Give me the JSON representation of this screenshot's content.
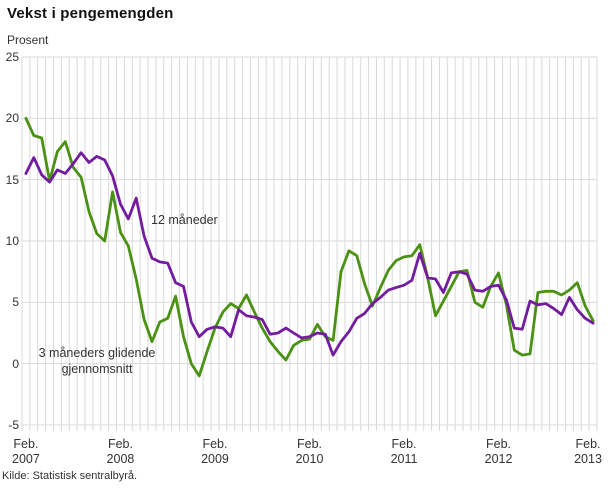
{
  "header": {
    "title": "Vekst i pengemengden",
    "y_axis_title": "Prosent"
  },
  "annotations": {
    "series_12m_label": "12 måneder",
    "series_3m_label_line1": "3 måneders glidende",
    "series_3m_label_line2": "gjennomsnitt"
  },
  "footer": {
    "source": "Kilde: Statistisk sentralbyrå."
  },
  "colors": {
    "purple_series": "#731c9e",
    "green_series": "#4a9114",
    "grid": "#d9d9d9",
    "text": "#333333",
    "title_text": "#111111"
  },
  "chart_data": {
    "type": "line",
    "title": "Vekst i pengemengden",
    "ylabel": "Prosent",
    "xlabel": "",
    "ylim": [
      -5,
      25
    ],
    "yticks": [
      25,
      20,
      15,
      10,
      5,
      0,
      -5
    ],
    "grid": true,
    "minor_x_grid": "monthly",
    "legend_position": "inline-annotations",
    "x_start": "Feb 2007",
    "x_end": "Feb 2013",
    "months_total": 73,
    "x_ticks": [
      {
        "month": "Feb.",
        "year": "2007"
      },
      {
        "month": "Feb.",
        "year": "2008"
      },
      {
        "month": "Feb.",
        "year": "2009"
      },
      {
        "month": "Feb.",
        "year": "2010"
      },
      {
        "month": "Feb.",
        "year": "2011"
      },
      {
        "month": "Feb.",
        "year": "2012"
      },
      {
        "month": "Feb.",
        "year": "2013"
      }
    ],
    "series": [
      {
        "name": "12 måneder",
        "color": "#731c9e",
        "values": [
          15.5,
          16.8,
          15.4,
          14.8,
          15.8,
          15.5,
          16.3,
          17.2,
          16.4,
          16.9,
          16.6,
          15.3,
          13.0,
          11.8,
          13.5,
          10.4,
          8.6,
          8.3,
          8.2,
          6.6,
          6.3,
          3.4,
          2.2,
          2.8,
          3.0,
          2.9,
          2.2,
          4.4,
          3.9,
          3.8,
          3.6,
          2.4,
          2.5,
          2.9,
          2.5,
          2.1,
          2.2,
          2.5,
          2.4,
          0.7,
          1.8,
          2.6,
          3.7,
          4.1,
          4.9,
          5.4,
          6.0,
          6.2,
          6.4,
          6.8,
          9.0,
          7.0,
          6.9,
          5.8,
          7.4,
          7.5,
          7.3,
          6.0,
          5.9,
          6.3,
          6.4,
          5.2,
          2.9,
          2.8,
          5.1,
          4.8,
          4.9,
          4.5,
          4.0,
          5.4,
          4.4,
          3.7,
          3.3
        ]
      },
      {
        "name": "3 måneders glidende gjennomsnitt",
        "color": "#4a9114",
        "values": [
          20.0,
          18.6,
          18.4,
          14.9,
          17.3,
          18.1,
          16.0,
          15.2,
          12.4,
          10.6,
          10.0,
          14.0,
          10.7,
          9.6,
          6.9,
          3.6,
          1.8,
          3.4,
          3.7,
          5.5,
          2.2,
          0.0,
          -1.0,
          1.0,
          2.9,
          4.2,
          4.9,
          4.5,
          5.6,
          4.2,
          2.9,
          1.8,
          1.0,
          0.3,
          1.5,
          1.9,
          2.0,
          3.2,
          2.2,
          1.9,
          7.5,
          9.2,
          8.8,
          6.5,
          4.7,
          6.2,
          7.6,
          8.4,
          8.7,
          8.8,
          9.7,
          7.0,
          3.9,
          5.1,
          6.3,
          7.5,
          7.6,
          5.0,
          4.6,
          6.3,
          7.4,
          4.8,
          1.1,
          0.7,
          0.8,
          5.8,
          5.9,
          5.9,
          5.6,
          6.0,
          6.6,
          4.7,
          3.5
        ]
      }
    ]
  }
}
